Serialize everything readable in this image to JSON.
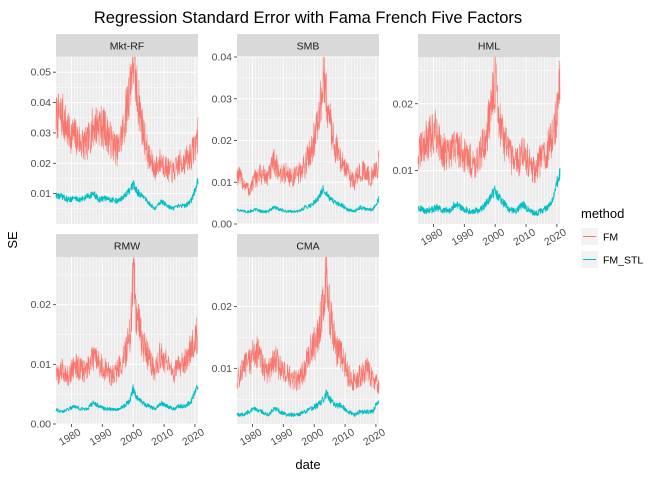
{
  "chart_data": {
    "type": "line",
    "title": "Regression Standard Error with Fama French Five Factors",
    "xlabel": "date",
    "ylabel": "SE",
    "x_ticks": [
      1980,
      1990,
      2000,
      2010,
      2020
    ],
    "x_range": [
      1975,
      2021
    ],
    "legend": {
      "title": "method",
      "placement": "right",
      "entries": [
        {
          "name": "FM",
          "color": "#F8766D"
        },
        {
          "name": "FM_STL",
          "color": "#00BFC4"
        }
      ]
    },
    "facets": [
      {
        "name": "Mkt-RF",
        "ylim": [
          0.0,
          0.055
        ],
        "y_ticks": [
          0.01,
          0.02,
          0.03,
          0.04,
          0.05
        ],
        "y_tick_labels": [
          "0.01",
          "0.02",
          "0.03",
          "0.04",
          "0.05"
        ],
        "series": [
          {
            "name": "FM",
            "x": [
              1975,
              1977,
              1979,
              1981,
              1983,
              1985,
              1987,
              1989,
              1991,
              1993,
              1995,
              1997,
              1999,
              2000,
              2001,
              2003,
              2005,
              2007,
              2009,
              2011,
              2013,
              2015,
              2017,
              2019,
              2021
            ],
            "values": [
              0.035,
              0.036,
              0.03,
              0.029,
              0.027,
              0.026,
              0.032,
              0.033,
              0.031,
              0.027,
              0.024,
              0.032,
              0.046,
              0.055,
              0.045,
              0.032,
              0.022,
              0.018,
              0.021,
              0.018,
              0.017,
              0.02,
              0.021,
              0.023,
              0.029
            ]
          },
          {
            "name": "FM_STL",
            "x": [
              1975,
              1977,
              1979,
              1981,
              1983,
              1985,
              1987,
              1989,
              1991,
              1993,
              1995,
              1997,
              1999,
              2000,
              2001,
              2003,
              2005,
              2007,
              2009,
              2011,
              2013,
              2015,
              2017,
              2019,
              2021
            ],
            "values": [
              0.0095,
              0.009,
              0.008,
              0.0085,
              0.008,
              0.009,
              0.01,
              0.008,
              0.0085,
              0.008,
              0.0075,
              0.009,
              0.011,
              0.013,
              0.011,
              0.009,
              0.007,
              0.005,
              0.0075,
              0.006,
              0.005,
              0.006,
              0.006,
              0.008,
              0.014
            ]
          }
        ]
      },
      {
        "name": "SMB",
        "ylim": [
          0.0,
          0.04
        ],
        "y_ticks": [
          0.0,
          0.01,
          0.02,
          0.03,
          0.04
        ],
        "y_tick_labels": [
          "0.00",
          "0.01",
          "0.02",
          "0.03",
          "0.04"
        ],
        "series": [
          {
            "name": "FM",
            "x": [
              1975,
              1977,
              1979,
              1981,
              1983,
              1985,
              1987,
              1989,
              1991,
              1993,
              1995,
              1997,
              1999,
              2001,
              2002,
              2003,
              2005,
              2007,
              2009,
              2011,
              2013,
              2015,
              2017,
              2019,
              2021
            ],
            "values": [
              0.012,
              0.01,
              0.008,
              0.011,
              0.012,
              0.011,
              0.015,
              0.012,
              0.012,
              0.011,
              0.012,
              0.014,
              0.018,
              0.023,
              0.028,
              0.035,
              0.025,
              0.018,
              0.015,
              0.012,
              0.01,
              0.013,
              0.012,
              0.011,
              0.015
            ]
          },
          {
            "name": "FM_STL",
            "x": [
              1975,
              1977,
              1979,
              1981,
              1983,
              1985,
              1987,
              1989,
              1991,
              1993,
              1995,
              1997,
              1999,
              2001,
              2002,
              2003,
              2005,
              2007,
              2009,
              2011,
              2013,
              2015,
              2017,
              2019,
              2021
            ],
            "values": [
              0.0035,
              0.003,
              0.003,
              0.0035,
              0.003,
              0.003,
              0.004,
              0.0035,
              0.003,
              0.003,
              0.003,
              0.004,
              0.0045,
              0.006,
              0.007,
              0.0085,
              0.006,
              0.005,
              0.0045,
              0.0035,
              0.003,
              0.004,
              0.0035,
              0.0035,
              0.006
            ]
          }
        ]
      },
      {
        "name": "HML",
        "ylim": [
          0.002,
          0.027
        ],
        "y_ticks": [
          0.01,
          0.02
        ],
        "y_tick_labels": [
          "0.01",
          "0.02"
        ],
        "series": [
          {
            "name": "FM",
            "x": [
              1975,
              1977,
              1979,
              1981,
              1983,
              1985,
              1987,
              1989,
              1991,
              1993,
              1995,
              1997,
              1999,
              2000,
              2001,
              2003,
              2005,
              2007,
              2009,
              2011,
              2013,
              2015,
              2017,
              2019,
              2021
            ],
            "values": [
              0.012,
              0.014,
              0.015,
              0.016,
              0.013,
              0.012,
              0.014,
              0.013,
              0.012,
              0.011,
              0.012,
              0.015,
              0.02,
              0.024,
              0.019,
              0.014,
              0.012,
              0.011,
              0.013,
              0.011,
              0.01,
              0.012,
              0.013,
              0.016,
              0.022
            ]
          },
          {
            "name": "FM_STL",
            "x": [
              1975,
              1977,
              1979,
              1981,
              1983,
              1985,
              1987,
              1989,
              1991,
              1993,
              1995,
              1997,
              1999,
              2000,
              2001,
              2003,
              2005,
              2007,
              2009,
              2011,
              2013,
              2015,
              2017,
              2019,
              2021
            ],
            "values": [
              0.0045,
              0.004,
              0.004,
              0.0045,
              0.004,
              0.004,
              0.005,
              0.0045,
              0.004,
              0.004,
              0.004,
              0.005,
              0.0065,
              0.007,
              0.006,
              0.005,
              0.004,
              0.004,
              0.005,
              0.004,
              0.0035,
              0.004,
              0.0045,
              0.006,
              0.01
            ]
          }
        ]
      },
      {
        "name": "RMW",
        "ylim": [
          0.0,
          0.028
        ],
        "y_ticks": [
          0.0,
          0.01,
          0.02
        ],
        "y_tick_labels": [
          "0.00",
          "0.01",
          "0.02"
        ],
        "series": [
          {
            "name": "FM",
            "x": [
              1975,
              1977,
              1979,
              1981,
              1983,
              1985,
              1987,
              1989,
              1991,
              1993,
              1995,
              1997,
              1999,
              2000,
              2001,
              2003,
              2005,
              2007,
              2009,
              2011,
              2013,
              2015,
              2017,
              2019,
              2021
            ],
            "values": [
              0.008,
              0.009,
              0.008,
              0.01,
              0.009,
              0.009,
              0.011,
              0.01,
              0.009,
              0.008,
              0.009,
              0.011,
              0.015,
              0.025,
              0.019,
              0.014,
              0.011,
              0.009,
              0.012,
              0.01,
              0.008,
              0.01,
              0.011,
              0.013,
              0.015
            ]
          },
          {
            "name": "FM_STL",
            "x": [
              1975,
              1977,
              1979,
              1981,
              1983,
              1985,
              1987,
              1989,
              1991,
              1993,
              1995,
              1997,
              1999,
              2000,
              2001,
              2003,
              2005,
              2007,
              2009,
              2011,
              2013,
              2015,
              2017,
              2019,
              2021
            ],
            "values": [
              0.0025,
              0.002,
              0.0025,
              0.003,
              0.0025,
              0.0025,
              0.0035,
              0.003,
              0.0025,
              0.0025,
              0.0025,
              0.003,
              0.004,
              0.006,
              0.0045,
              0.0035,
              0.003,
              0.0025,
              0.0035,
              0.003,
              0.0025,
              0.003,
              0.003,
              0.004,
              0.0065
            ]
          }
        ]
      },
      {
        "name": "CMA",
        "ylim": [
          0.001,
          0.028
        ],
        "y_ticks": [
          0.01,
          0.02
        ],
        "y_tick_labels": [
          "0.01",
          "0.02"
        ],
        "series": [
          {
            "name": "FM",
            "x": [
              1975,
              1977,
              1979,
              1981,
              1983,
              1985,
              1987,
              1989,
              1991,
              1993,
              1995,
              1997,
              1999,
              2001,
              2003,
              2004,
              2005,
              2007,
              2009,
              2011,
              2013,
              2015,
              2017,
              2019,
              2021
            ],
            "values": [
              0.008,
              0.01,
              0.011,
              0.013,
              0.011,
              0.009,
              0.012,
              0.01,
              0.009,
              0.008,
              0.008,
              0.01,
              0.013,
              0.015,
              0.02,
              0.027,
              0.019,
              0.013,
              0.012,
              0.009,
              0.008,
              0.009,
              0.01,
              0.008,
              0.007
            ]
          },
          {
            "name": "FM_STL",
            "x": [
              1975,
              1977,
              1979,
              1981,
              1983,
              1985,
              1987,
              1989,
              1991,
              1993,
              1995,
              1997,
              1999,
              2001,
              2003,
              2004,
              2005,
              2007,
              2009,
              2011,
              2013,
              2015,
              2017,
              2019,
              2021
            ],
            "values": [
              0.0025,
              0.0025,
              0.003,
              0.0035,
              0.003,
              0.0025,
              0.0035,
              0.003,
              0.0025,
              0.0025,
              0.0025,
              0.003,
              0.0035,
              0.004,
              0.005,
              0.006,
              0.005,
              0.004,
              0.004,
              0.003,
              0.0025,
              0.003,
              0.003,
              0.003,
              0.005
            ]
          }
        ]
      }
    ]
  }
}
